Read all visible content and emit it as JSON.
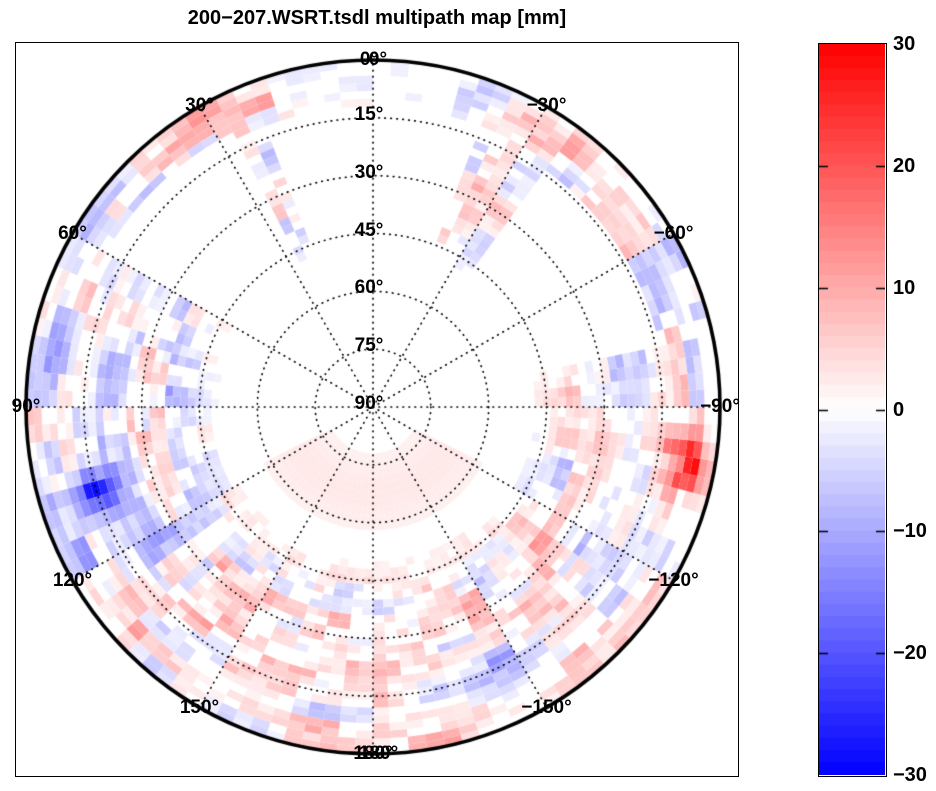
{
  "chart_data": {
    "type": "heatmap",
    "projection": "polar-skyplot-azimuth-elevation",
    "title": "200−207.WSRT.tsdl multipath map [mm]",
    "value_unit": "mm",
    "value_range": [
      -30,
      30
    ],
    "azimuth_ticks": [
      {
        "label": "0°",
        "az": 0
      },
      {
        "label": "0°",
        "az": 0
      },
      {
        "label": "30°",
        "az": 30
      },
      {
        "label": "60°",
        "az": 60
      },
      {
        "label": "90°",
        "az": 90
      },
      {
        "label": "120°",
        "az": 120
      },
      {
        "label": "150°",
        "az": 150
      },
      {
        "label": "180°",
        "az": 180
      },
      {
        "label": "−180°",
        "az": 180
      },
      {
        "label": "−150°",
        "az": -150
      },
      {
        "label": "−120°",
        "az": -120
      },
      {
        "label": "−90°",
        "az": -90
      },
      {
        "label": "−60°",
        "az": -60
      },
      {
        "label": "−30°",
        "az": -30
      }
    ],
    "elevation_ticks": [
      {
        "label": "15°",
        "el": 15
      },
      {
        "label": "30°",
        "el": 30
      },
      {
        "label": "45°",
        "el": 45
      },
      {
        "label": "60°",
        "el": 60
      },
      {
        "label": "75°",
        "el": 75
      },
      {
        "label": "90°",
        "el": 90
      }
    ],
    "grid": {
      "spoke_step_deg": 30,
      "ring_step_deg": 15,
      "line_style": "dotted",
      "outer_circle": "solid"
    },
    "colorbar": {
      "min": -30,
      "max": 30,
      "steps": 60,
      "color_positive": "#ff0000",
      "color_zero": "#ffffff",
      "color_negative": "#0000ff",
      "ticks": [
        {
          "value": 30,
          "label": "30"
        },
        {
          "value": 20,
          "label": "20"
        },
        {
          "value": 10,
          "label": "10"
        },
        {
          "value": 0,
          "label": "0"
        },
        {
          "value": -10,
          "label": "−10"
        },
        {
          "value": -20,
          "label": "−20"
        },
        {
          "value": -30,
          "label": "−30"
        }
      ]
    },
    "field_summary": {
      "description": "Speckled red/blue multipath residual map, values mostly within ±10 mm, concentrated below ~40° elevation in an outer annulus; sky interior above ~50° elevation largely empty except a faint pink haze in the southern half near zenith.",
      "empty_wedges_az_deg": [
        [
          26,
          60
        ],
        [
          -36,
          -78
        ],
        [
          -22,
          22
        ]
      ],
      "features": [
        {
          "az_deg": -102,
          "el_deg": 5,
          "sigma_az_deg": 4,
          "sigma_el_deg": 6,
          "value_mm": 24,
          "note": "saturated red streak on east rim"
        },
        {
          "az_deg": -97,
          "el_deg": 10,
          "sigma_az_deg": 3,
          "sigma_el_deg": 7,
          "value_mm": 18,
          "note": "red streak extension"
        },
        {
          "az_deg": 107,
          "el_deg": 15,
          "sigma_az_deg": 4,
          "sigma_el_deg": 6,
          "value_mm": -20,
          "note": "dark blue patch west-southwest"
        },
        {
          "az_deg": 80,
          "el_deg": 6,
          "sigma_az_deg": 6,
          "sigma_el_deg": 5,
          "value_mm": -9,
          "note": "blue streaks near western rim"
        },
        {
          "az_deg": 118,
          "el_deg": 25,
          "sigma_az_deg": 6,
          "sigma_el_deg": 6,
          "value_mm": -8,
          "note": "blue patch lower west"
        },
        {
          "az_deg": -33,
          "el_deg": 6,
          "sigma_az_deg": 10,
          "sigma_el_deg": 5,
          "value_mm": 9,
          "note": "red patches near northeastern rim"
        },
        {
          "az_deg": 30,
          "el_deg": 4,
          "sigma_az_deg": 8,
          "sigma_el_deg": 4,
          "value_mm": 7,
          "note": "red patches near northwestern rim"
        },
        {
          "az_deg": -170,
          "el_deg": 15,
          "sigma_az_deg": 6,
          "sigma_el_deg": 6,
          "value_mm": -11,
          "note": "blue patch near southern rim"
        },
        {
          "az_deg": -153,
          "el_deg": 15,
          "sigma_az_deg": 5,
          "sigma_el_deg": 5,
          "value_mm": -9,
          "note": "blue patch south-southeast"
        },
        {
          "az_deg": 170,
          "el_deg": 68,
          "sigma_az_deg": 30,
          "sigma_el_deg": 14,
          "value_mm": 3,
          "note": "faint pink haze near zenith, south"
        }
      ]
    }
  }
}
